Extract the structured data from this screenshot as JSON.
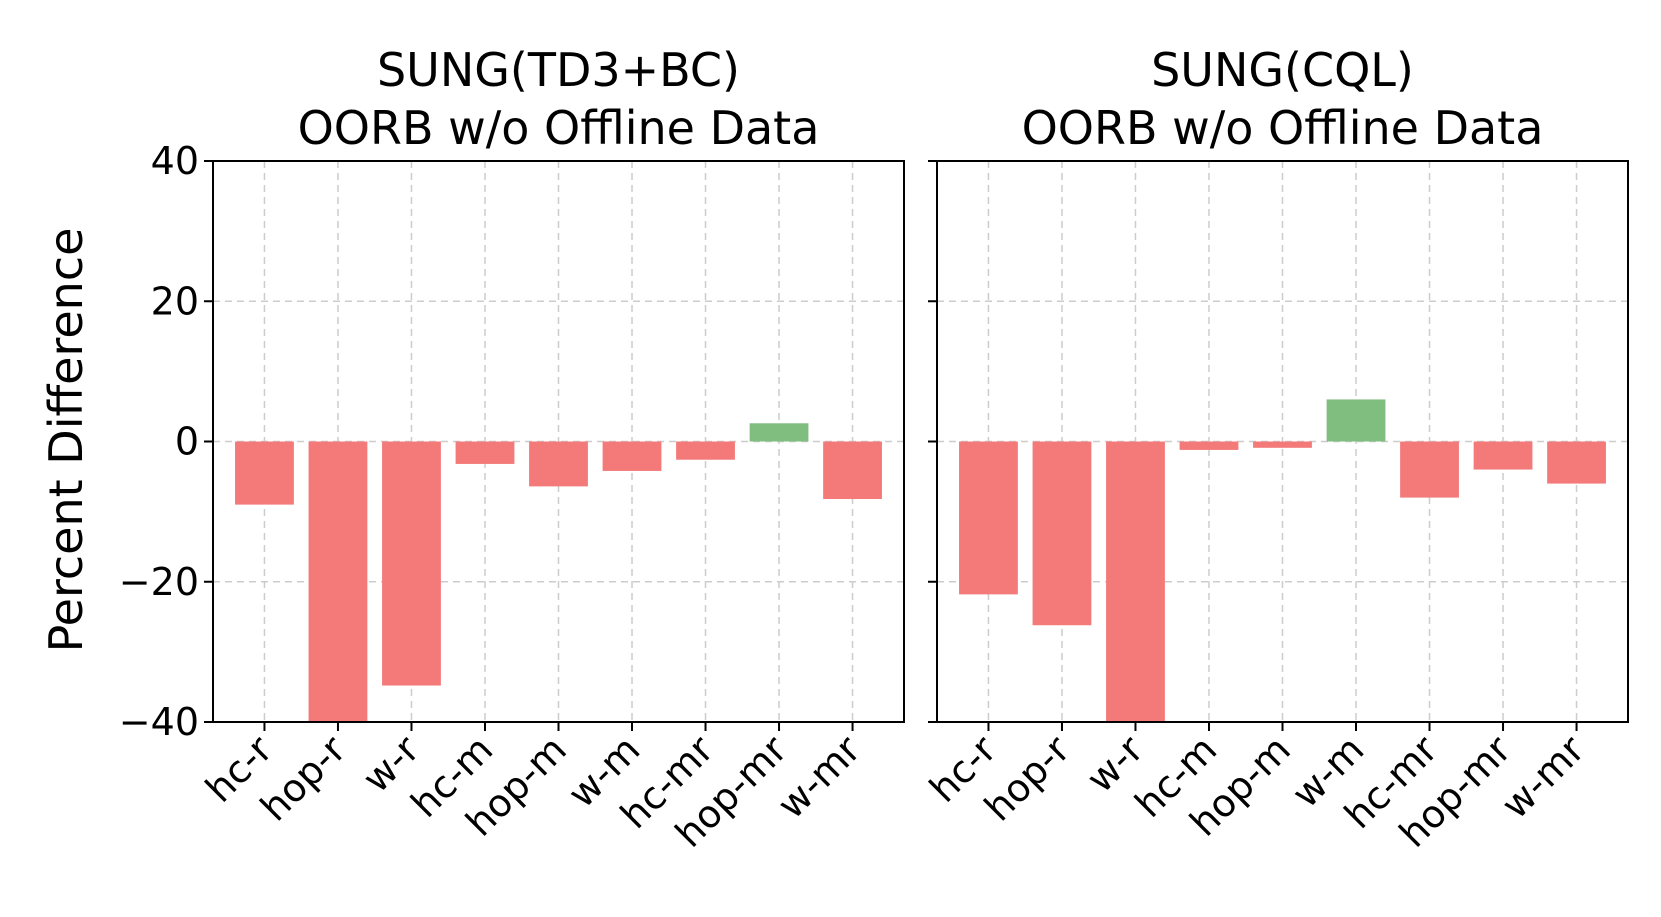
{
  "ylabel": "Percent Difference",
  "colors": {
    "negative": "#f47a7a",
    "positive": "#80be80"
  },
  "chart_data": [
    {
      "type": "bar",
      "title": "SUNG(TD3+BC)\nOORB w/o Offline Data",
      "categories": [
        "hc-r",
        "hop-r",
        "w-r",
        "hc-m",
        "hop-m",
        "w-m",
        "hc-mr",
        "hop-mr",
        "w-mr"
      ],
      "values": [
        -9.0,
        -40.0,
        -34.8,
        -3.2,
        -6.4,
        -4.2,
        -2.6,
        2.6,
        -8.2
      ],
      "ylim": [
        -40,
        40
      ],
      "yticks": [
        -40,
        -20,
        0,
        20,
        40
      ],
      "grid": true
    },
    {
      "type": "bar",
      "title": "SUNG(CQL)\nOORB w/o Offline Data",
      "categories": [
        "hc-r",
        "hop-r",
        "w-r",
        "hc-m",
        "hop-m",
        "w-m",
        "hc-mr",
        "hop-mr",
        "w-mr"
      ],
      "values": [
        -21.8,
        -26.2,
        -40.0,
        -1.2,
        -0.9,
        6.0,
        -8.0,
        -4.0,
        -6.0
      ],
      "ylim": [
        -40,
        40
      ],
      "yticks": [
        -40,
        -20,
        0,
        20,
        40
      ],
      "grid": true
    }
  ]
}
